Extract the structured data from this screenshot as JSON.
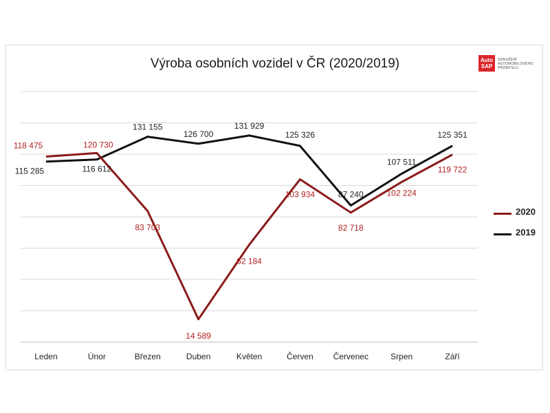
{
  "logo": {
    "brand_line1": "Auto",
    "brand_line2": "SAP",
    "org_line1": "SDRUŽENÍ",
    "org_line2": "AUTOMOBILOVÉHO",
    "org_line3": "PRŮMYSLU"
  },
  "colors": {
    "series_2020": "#8b1a1a",
    "series_2019": "#111111",
    "grid": "#d9d9d9"
  },
  "chart_data": {
    "type": "line",
    "title": "Výroba osobních vozidel v ČR (2020/2019)",
    "xlabel": "",
    "ylabel": "",
    "categories": [
      "Leden",
      "Únor",
      "Březen",
      "Duben",
      "Květen",
      "Červen",
      "Červenec",
      "Srpen",
      "Září"
    ],
    "ylim": [
      0,
      160000
    ],
    "grid": true,
    "legend_position": "right",
    "series": [
      {
        "name": "2020",
        "values": [
          118475,
          120730,
          83703,
          14589,
          62184,
          103934,
          82718,
          102224,
          119722
        ],
        "labels": [
          "118 475",
          "120 730",
          "83 703",
          "14 589",
          "62 184",
          "103 934",
          "82 718",
          "102 224",
          "119 722"
        ]
      },
      {
        "name": "2019",
        "values": [
          115285,
          116612,
          131155,
          126700,
          131929,
          125326,
          87240,
          107511,
          125351
        ],
        "labels": [
          "115 285",
          "116 612",
          "131 155",
          "126 700",
          "131 929",
          "125 326",
          "87 240",
          "107 511",
          "125 351"
        ]
      }
    ]
  }
}
